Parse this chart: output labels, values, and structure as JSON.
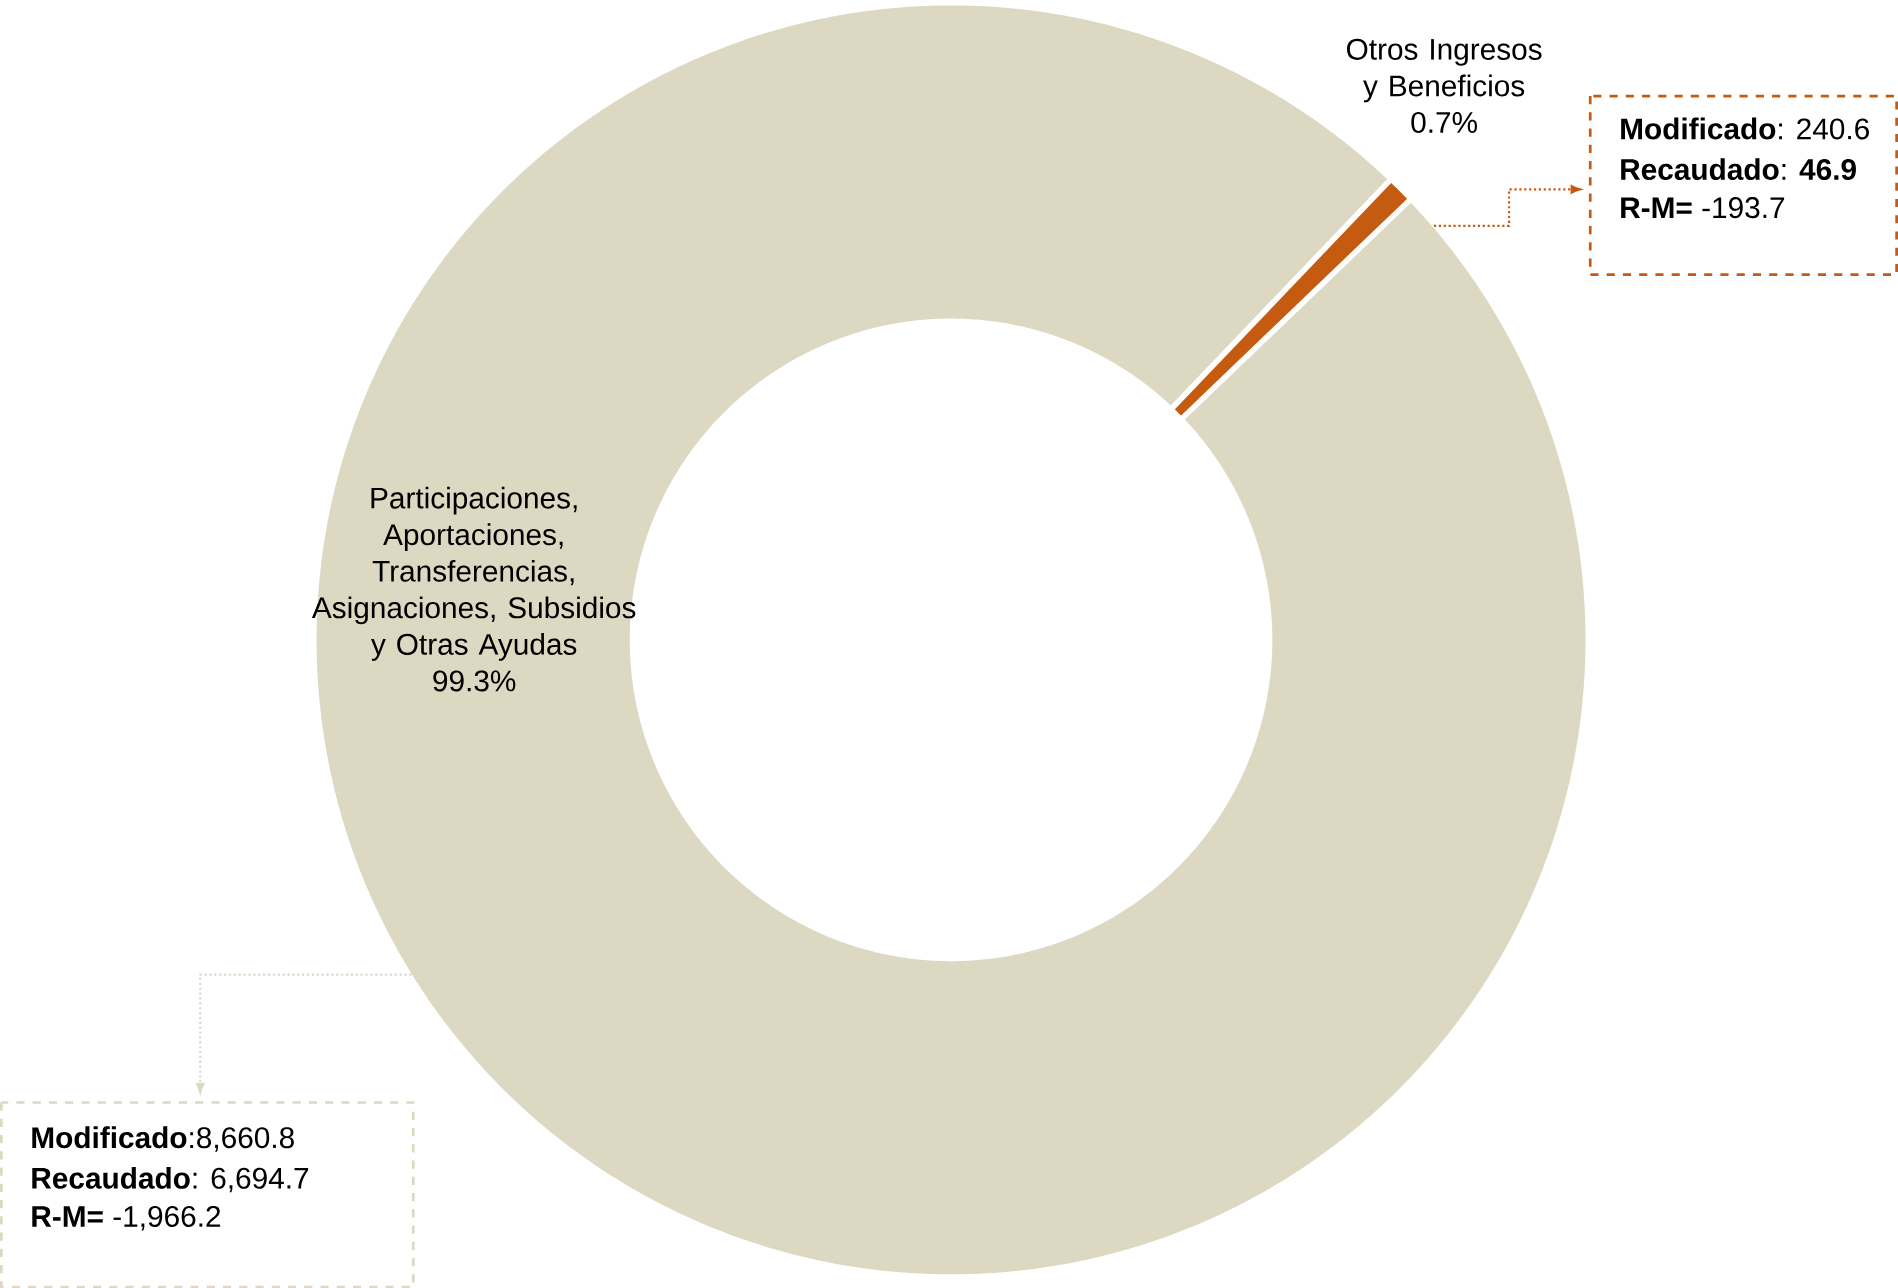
{
  "chart_data": {
    "type": "donut",
    "categories": [
      "Participaciones, Aportaciones, Transferencias, Asignaciones, Subsidios y Otras Ayudas",
      "Otros Ingresos y Beneficios"
    ],
    "values": [
      99.3,
      0.7
    ],
    "value_labels": [
      "99.3%",
      "0.7%"
    ],
    "colors": [
      "#ddd8c2",
      "#c55a11"
    ],
    "annotations": [
      "**Modificado**: 240.6",
      "**Recaudado**:   **46.9**",
      "**R-M=** -193.7",
      "**Modificado**:8,660.8",
      "**Recaudado**: 6,694.7",
      "**R-M=**          -1,966.2"
    ]
  }
}
